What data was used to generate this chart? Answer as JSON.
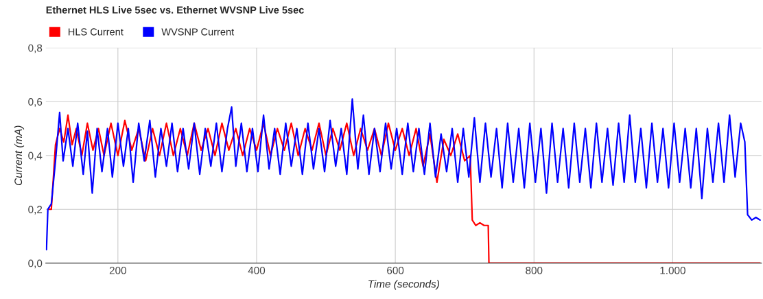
{
  "chart_data": {
    "type": "line",
    "title": "Ethernet HLS Live 5sec vs. Ethernet WVSNP Live 5sec",
    "xlabel": "Time (seconds)",
    "ylabel": "Current (mA)",
    "xlim": [
      96,
      1128
    ],
    "xticks": [
      200,
      400,
      600,
      800,
      {
        "value": 1000,
        "label": "1.000"
      }
    ],
    "ylim": [
      0,
      0.8
    ],
    "yticks": [
      {
        "value": 0,
        "label": "0,0"
      },
      {
        "value": 0.2,
        "label": "0,2"
      },
      {
        "value": 0.4,
        "label": "0,4"
      },
      {
        "value": 0.6,
        "label": "0,6"
      },
      {
        "value": 0.8,
        "label": "0,8"
      }
    ],
    "grid": true,
    "legend": "top left",
    "series": [
      {
        "name": "HLS Current",
        "color": "#ff0000",
        "x": [
          100,
          104,
          110,
          116,
          122,
          128,
          134,
          140,
          148,
          156,
          164,
          172,
          180,
          190,
          200,
          210,
          220,
          230,
          240,
          250,
          260,
          270,
          280,
          290,
          300,
          310,
          320,
          330,
          340,
          350,
          360,
          370,
          380,
          390,
          400,
          410,
          420,
          430,
          440,
          450,
          460,
          470,
          480,
          490,
          500,
          510,
          520,
          530,
          540,
          550,
          560,
          570,
          580,
          590,
          600,
          610,
          620,
          630,
          640,
          650,
          660,
          670,
          680,
          690,
          700,
          708,
          711,
          716,
          722,
          728,
          734,
          735,
          1126
        ],
        "values": [
          0.2,
          0.2,
          0.44,
          0.5,
          0.45,
          0.55,
          0.44,
          0.5,
          0.4,
          0.52,
          0.42,
          0.5,
          0.4,
          0.52,
          0.4,
          0.53,
          0.42,
          0.5,
          0.38,
          0.5,
          0.4,
          0.52,
          0.4,
          0.5,
          0.4,
          0.52,
          0.42,
          0.5,
          0.4,
          0.52,
          0.42,
          0.5,
          0.4,
          0.5,
          0.42,
          0.52,
          0.4,
          0.5,
          0.42,
          0.52,
          0.4,
          0.5,
          0.42,
          0.52,
          0.4,
          0.5,
          0.42,
          0.52,
          0.4,
          0.5,
          0.42,
          0.5,
          0.4,
          0.52,
          0.42,
          0.5,
          0.4,
          0.5,
          0.36,
          0.48,
          0.3,
          0.46,
          0.4,
          0.48,
          0.38,
          0.4,
          0.16,
          0.14,
          0.15,
          0.14,
          0.14,
          0,
          0
        ]
      },
      {
        "name": "WVSNP Current",
        "color": "#0000ff",
        "x": [
          97,
          99,
          104,
          110,
          116,
          121,
          128,
          135,
          142,
          150,
          156,
          163,
          170,
          177,
          185,
          192,
          200,
          208,
          215,
          222,
          230,
          238,
          246,
          254,
          262,
          270,
          278,
          286,
          294,
          302,
          310,
          318,
          326,
          334,
          342,
          350,
          358,
          364,
          370,
          378,
          386,
          394,
          402,
          410,
          418,
          426,
          434,
          442,
          450,
          458,
          466,
          474,
          482,
          490,
          498,
          506,
          514,
          522,
          530,
          538,
          546,
          554,
          562,
          570,
          578,
          586,
          594,
          602,
          610,
          618,
          626,
          634,
          642,
          650,
          658,
          666,
          674,
          682,
          690,
          698,
          706,
          714,
          722,
          730,
          738,
          746,
          754,
          762,
          770,
          778,
          786,
          794,
          802,
          810,
          818,
          826,
          834,
          842,
          850,
          858,
          866,
          874,
          882,
          890,
          898,
          906,
          914,
          922,
          930,
          938,
          946,
          954,
          962,
          970,
          978,
          986,
          994,
          1002,
          1010,
          1018,
          1026,
          1034,
          1042,
          1050,
          1058,
          1066,
          1074,
          1082,
          1090,
          1098,
          1104,
          1108,
          1114,
          1120,
          1126
        ],
        "values": [
          0.05,
          0.2,
          0.22,
          0.38,
          0.56,
          0.38,
          0.5,
          0.36,
          0.52,
          0.33,
          0.49,
          0.26,
          0.5,
          0.34,
          0.5,
          0.32,
          0.52,
          0.36,
          0.5,
          0.3,
          0.52,
          0.38,
          0.53,
          0.32,
          0.5,
          0.36,
          0.52,
          0.34,
          0.5,
          0.35,
          0.52,
          0.33,
          0.5,
          0.36,
          0.52,
          0.34,
          0.5,
          0.58,
          0.36,
          0.52,
          0.34,
          0.5,
          0.34,
          0.55,
          0.35,
          0.5,
          0.33,
          0.52,
          0.36,
          0.5,
          0.33,
          0.52,
          0.35,
          0.5,
          0.34,
          0.53,
          0.36,
          0.5,
          0.33,
          0.61,
          0.35,
          0.55,
          0.33,
          0.5,
          0.34,
          0.52,
          0.35,
          0.5,
          0.33,
          0.52,
          0.34,
          0.5,
          0.33,
          0.52,
          0.32,
          0.48,
          0.34,
          0.5,
          0.3,
          0.5,
          0.32,
          0.54,
          0.3,
          0.52,
          0.32,
          0.5,
          0.28,
          0.52,
          0.3,
          0.5,
          0.28,
          0.52,
          0.3,
          0.5,
          0.26,
          0.52,
          0.3,
          0.5,
          0.28,
          0.52,
          0.3,
          0.5,
          0.28,
          0.52,
          0.3,
          0.5,
          0.29,
          0.52,
          0.3,
          0.55,
          0.3,
          0.5,
          0.28,
          0.52,
          0.3,
          0.5,
          0.28,
          0.52,
          0.3,
          0.5,
          0.28,
          0.5,
          0.24,
          0.5,
          0.3,
          0.52,
          0.3,
          0.55,
          0.32,
          0.52,
          0.45,
          0.18,
          0.16,
          0.17,
          0.16
        ]
      }
    ]
  }
}
